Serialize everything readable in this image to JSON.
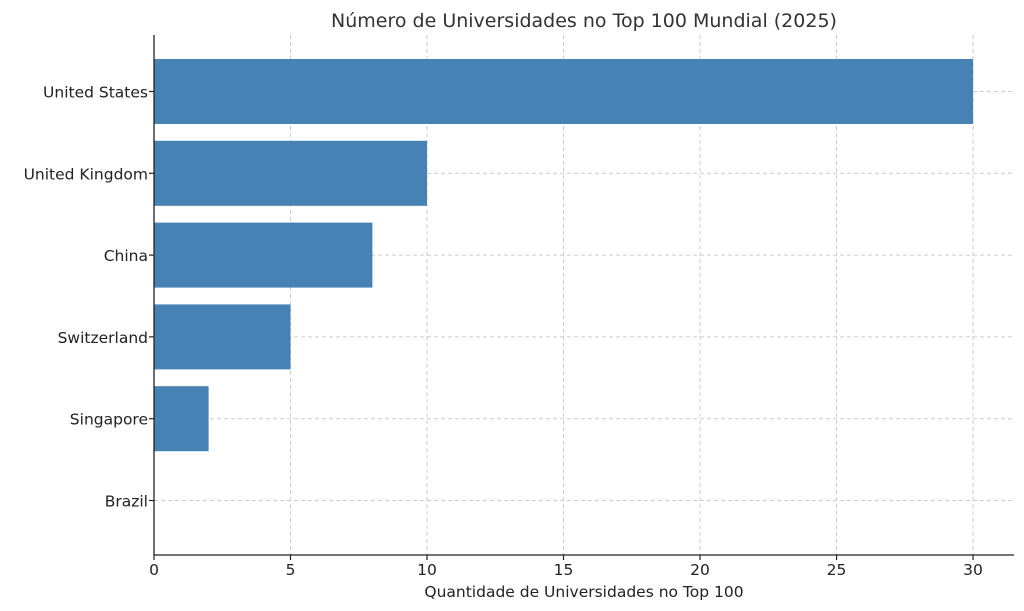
{
  "chart_data": {
    "type": "bar",
    "orientation": "horizontal",
    "title": "Número de Universidades no Top 100 Mundial (2025)",
    "xlabel": "Quantidade de Universidades no Top 100",
    "ylabel": "",
    "categories": [
      "United States",
      "United Kingdom",
      "China",
      "Switzerland",
      "Singapore",
      "Brazil"
    ],
    "values": [
      30,
      10,
      8,
      5,
      2,
      0
    ],
    "xlim": [
      0,
      31.5
    ],
    "xticks": [
      0,
      5,
      10,
      15,
      20,
      25,
      30
    ],
    "grid": true,
    "bar_color": "#4682b4"
  }
}
